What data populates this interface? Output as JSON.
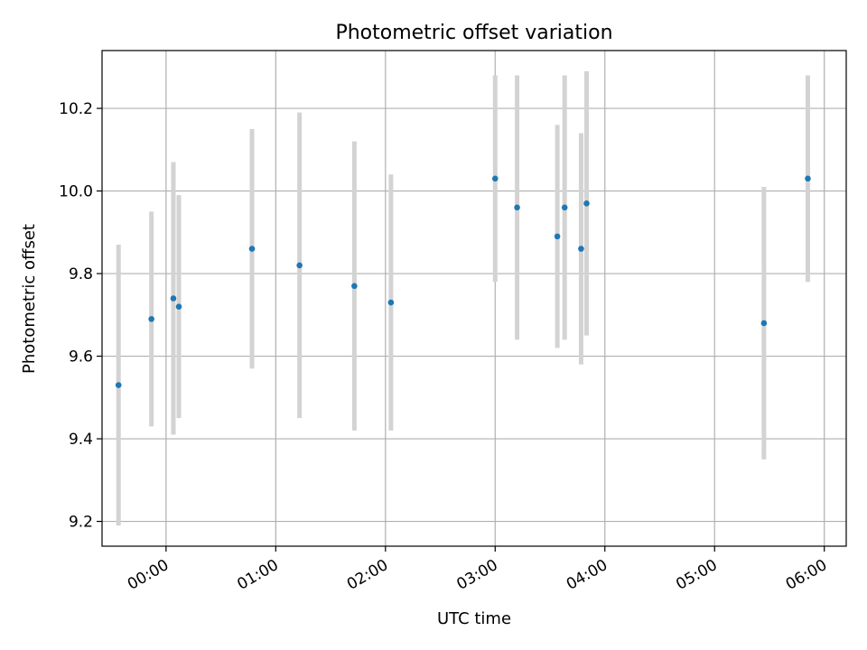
{
  "chart_data": {
    "type": "scatter",
    "title": "Photometric offset variation",
    "xlabel": "UTC time",
    "ylabel": "Photometric offset",
    "x_unit": "hours (UTC)",
    "xlim": [
      "23:25",
      "06:12"
    ],
    "ylim": [
      9.14,
      10.34
    ],
    "x_ticks": [
      "00:00",
      "01:00",
      "02:00",
      "03:00",
      "04:00",
      "05:00",
      "06:00"
    ],
    "y_ticks": [
      "9.2",
      "9.4",
      "9.6",
      "9.8",
      "10.0",
      "10.2"
    ],
    "grid": true,
    "marker_color": "#1f77b4",
    "errorbar_color": "#d3d3d3",
    "points": [
      {
        "time": "23:34",
        "y": 9.53,
        "err": 0.34
      },
      {
        "time": "23:52",
        "y": 9.69,
        "err": 0.26
      },
      {
        "time": "00:04",
        "y": 9.74,
        "err": 0.33
      },
      {
        "time": "00:07",
        "y": 9.72,
        "err": 0.27
      },
      {
        "time": "00:47",
        "y": 9.86,
        "err": 0.29
      },
      {
        "time": "01:13",
        "y": 9.82,
        "err": 0.37
      },
      {
        "time": "01:43",
        "y": 9.77,
        "err": 0.35
      },
      {
        "time": "02:03",
        "y": 9.73,
        "err": 0.31
      },
      {
        "time": "03:00",
        "y": 10.03,
        "err": 0.25
      },
      {
        "time": "03:12",
        "y": 9.96,
        "err": 0.32
      },
      {
        "time": "03:34",
        "y": 9.89,
        "err": 0.27
      },
      {
        "time": "03:38",
        "y": 9.96,
        "err": 0.32
      },
      {
        "time": "03:47",
        "y": 9.86,
        "err": 0.28
      },
      {
        "time": "03:50",
        "y": 9.97,
        "err": 0.32
      },
      {
        "time": "05:27",
        "y": 9.68,
        "err": 0.33
      },
      {
        "time": "05:51",
        "y": 10.03,
        "err": 0.25
      }
    ]
  }
}
